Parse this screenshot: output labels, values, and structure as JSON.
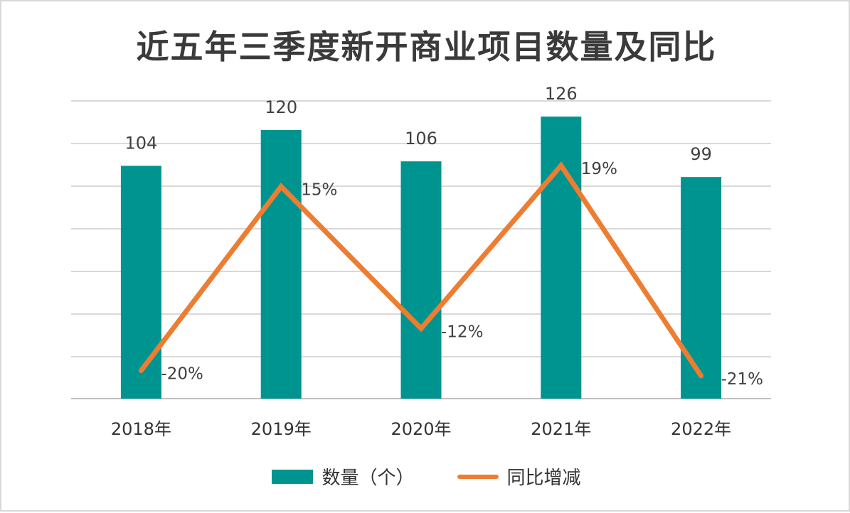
{
  "chart_data": {
    "type": "bar",
    "title": "近五年三季度新开商业项目数量及同比",
    "categories": [
      "2018年",
      "2019年",
      "2020年",
      "2021年",
      "2022年"
    ],
    "series": [
      {
        "name": "数量（个）",
        "type": "bar",
        "values": [
          104,
          120,
          106,
          126,
          99
        ],
        "labels": [
          "104",
          "120",
          "106",
          "126",
          "99"
        ],
        "color": "#009490"
      },
      {
        "name": "同比增减",
        "type": "line",
        "values": [
          -20,
          15,
          -12,
          19,
          -21
        ],
        "labels": [
          "-20%",
          "15%",
          "-12%",
          "19%",
          "-21%"
        ],
        "color": "#ed7d31"
      }
    ],
    "grid": true,
    "legend": "bottom"
  }
}
